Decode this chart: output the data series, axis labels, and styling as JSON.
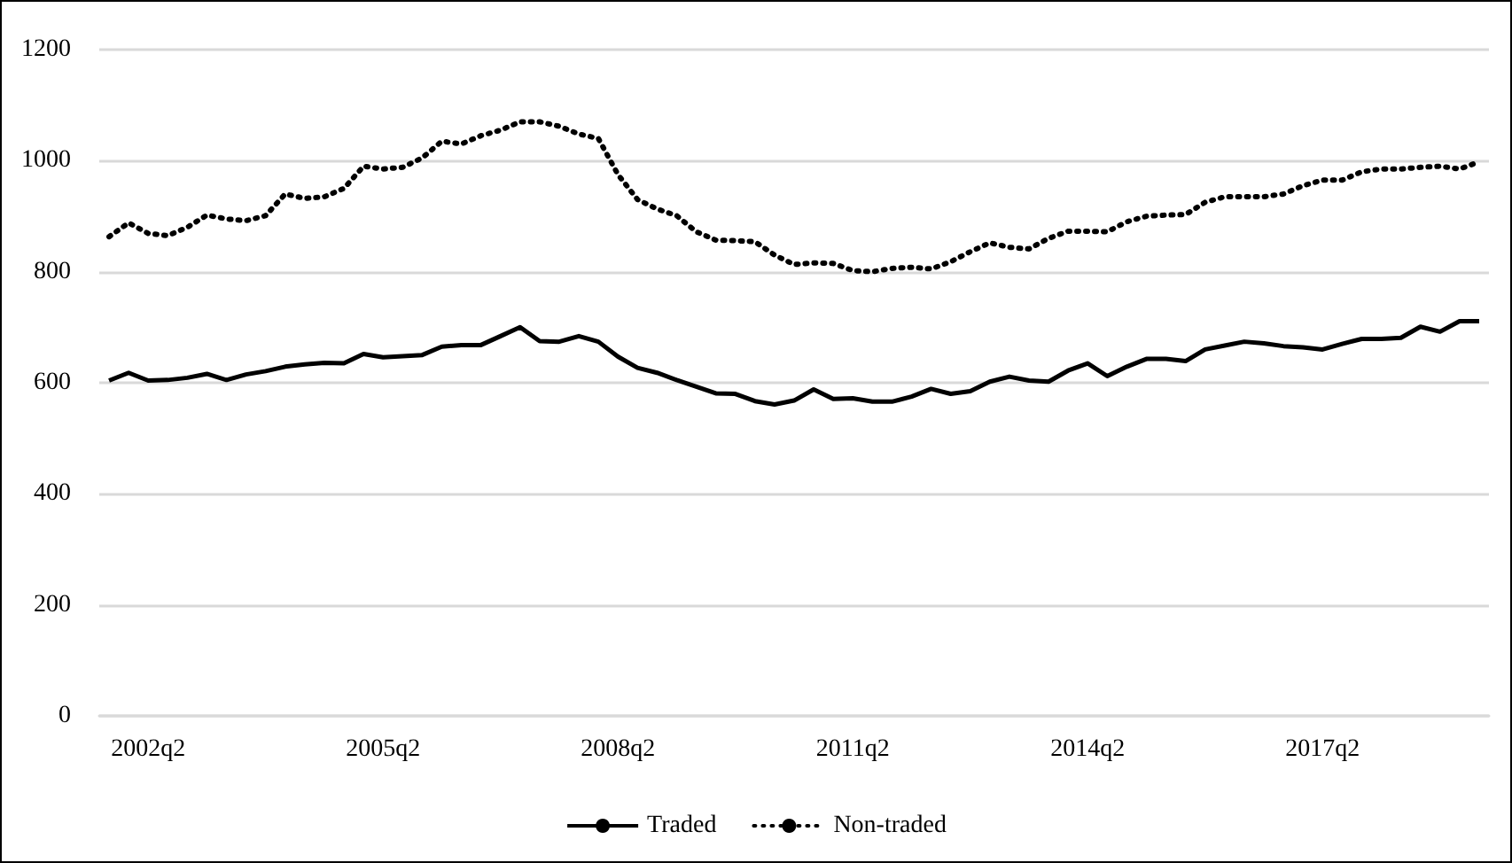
{
  "chart_data": {
    "type": "line",
    "categories": [
      null,
      null,
      "2002q2",
      null,
      null,
      null,
      null,
      null,
      null,
      null,
      null,
      null,
      null,
      null,
      "2005q2",
      null,
      null,
      null,
      null,
      null,
      null,
      null,
      null,
      null,
      null,
      null,
      "2008q2",
      null,
      null,
      null,
      null,
      null,
      null,
      null,
      null,
      null,
      null,
      null,
      "2011q2",
      null,
      null,
      null,
      null,
      null,
      null,
      null,
      null,
      null,
      null,
      null,
      "2014q2",
      null,
      null,
      null,
      null,
      null,
      null,
      null,
      null,
      null,
      null,
      null,
      "2017q2",
      null,
      null,
      null,
      null,
      null,
      null,
      null,
      null
    ],
    "series": [
      {
        "name": "Traded",
        "color": "#000000",
        "line_style": "solid",
        "values": [
          604,
          618,
          604,
          605,
          609,
          616,
          605,
          615,
          621,
          629,
          633,
          636,
          635,
          652,
          646,
          648,
          650,
          665,
          668,
          668,
          684,
          700,
          675,
          674,
          684,
          674,
          647,
          627,
          618,
          605,
          593,
          581,
          580,
          567,
          561,
          568,
          588,
          571,
          572,
          566,
          566,
          575,
          589,
          580,
          585,
          602,
          611,
          604,
          602,
          622,
          635,
          612,
          629,
          643,
          643,
          639,
          660,
          667,
          674,
          671,
          666,
          664,
          660,
          670,
          679,
          679,
          681,
          701,
          692,
          711,
          711
        ]
      },
      {
        "name": "Non-traded",
        "color": "#000000",
        "line_style": "dotted",
        "values": [
          863,
          888,
          869,
          865,
          880,
          902,
          895,
          892,
          901,
          940,
          932,
          935,
          950,
          990,
          985,
          988,
          1005,
          1035,
          1030,
          1045,
          1055,
          1070,
          1070,
          1062,
          1048,
          1040,
          975,
          930,
          913,
          901,
          872,
          857,
          856,
          854,
          830,
          813,
          816,
          815,
          802,
          800,
          806,
          808,
          805,
          818,
          836,
          852,
          844,
          841,
          860,
          873,
          873,
          872,
          890,
          900,
          902,
          903,
          925,
          935,
          935,
          935,
          940,
          955,
          965,
          965,
          980,
          985,
          985,
          988,
          990,
          985,
          998
        ]
      }
    ],
    "ylim": [
      0,
      1200
    ],
    "yticks": [
      0,
      200,
      400,
      600,
      800,
      1000,
      1200
    ],
    "grid": "y",
    "legend": "bottom",
    "marker": "none"
  }
}
